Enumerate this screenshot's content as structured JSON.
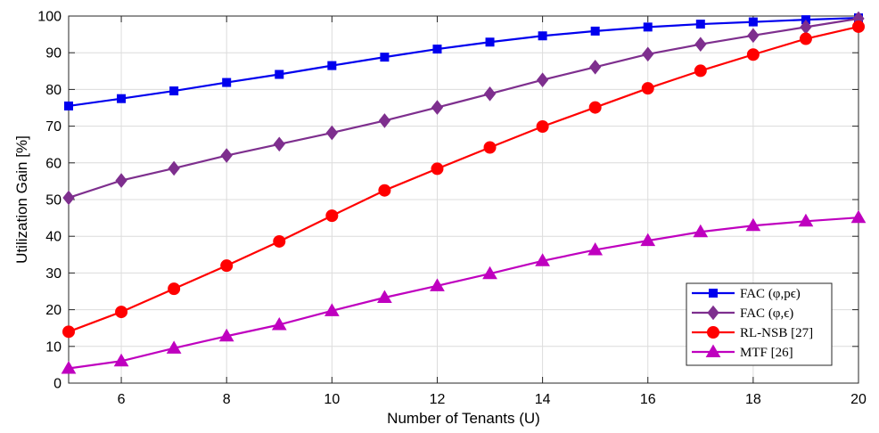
{
  "chart_data": {
    "type": "line",
    "xlabel": "Number of Tenants (U)",
    "ylabel": "Utilization Gain [%]",
    "xlim": [
      5,
      20
    ],
    "ylim": [
      0,
      100
    ],
    "xticks": [
      6,
      8,
      10,
      12,
      14,
      16,
      18,
      20
    ],
    "yticks": [
      0,
      10,
      20,
      30,
      40,
      50,
      60,
      70,
      80,
      90,
      100
    ],
    "grid": true,
    "legend_position": "bottom-right",
    "x": [
      5,
      6,
      7,
      8,
      9,
      10,
      11,
      12,
      13,
      14,
      15,
      16,
      17,
      18,
      19,
      20
    ],
    "series": [
      {
        "name": "FAC (φ,pϵ)",
        "color": "#0000ee",
        "marker": "square",
        "values": [
          75.5,
          77.5,
          79.6,
          81.9,
          84.1,
          86.5,
          88.8,
          91.0,
          92.9,
          94.6,
          95.9,
          97.0,
          97.8,
          98.4,
          99.0,
          99.5
        ]
      },
      {
        "name": "FAC (φ,ϵ)",
        "color": "#7e2f8e",
        "marker": "diamond",
        "values": [
          50.5,
          55.2,
          58.5,
          62.0,
          65.1,
          68.2,
          71.5,
          75.1,
          78.8,
          82.6,
          86.1,
          89.6,
          92.3,
          94.7,
          97.0,
          99.3
        ]
      },
      {
        "name": "RL-NSB [27]",
        "color": "#ff0000",
        "marker": "circle",
        "values": [
          14.0,
          19.4,
          25.7,
          32.0,
          38.6,
          45.6,
          52.5,
          58.4,
          64.2,
          69.9,
          75.1,
          80.3,
          85.1,
          89.5,
          93.8,
          97.1
        ]
      },
      {
        "name": "MTF [26]",
        "color": "#bf00bf",
        "marker": "triangle",
        "values": [
          4.0,
          6.0,
          9.5,
          12.8,
          15.9,
          19.7,
          23.3,
          26.5,
          29.8,
          33.3,
          36.3,
          38.8,
          41.2,
          42.9,
          44.1,
          45.1
        ]
      }
    ]
  }
}
